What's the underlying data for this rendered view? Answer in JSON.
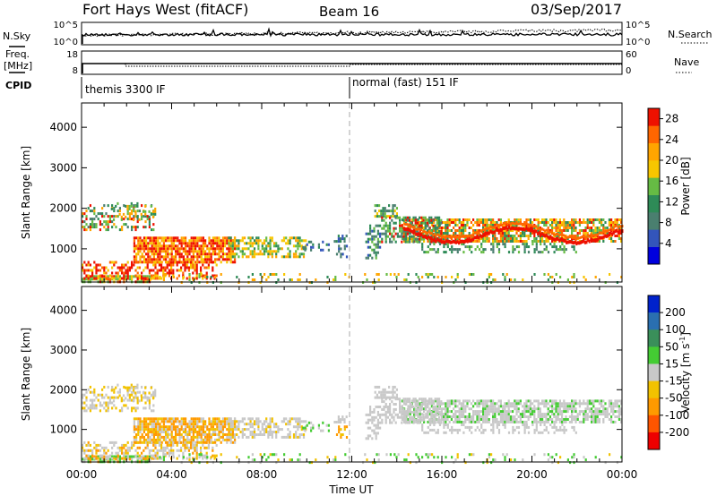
{
  "header": {
    "title": "Fort Hays West (fitACF)",
    "beam": "Beam 16",
    "date": "03/Sep/2017"
  },
  "side_labels": {
    "nsky": "N.Sky",
    "freq_line1": "Freq.",
    "freq_line2": "[MHz]",
    "cpid": "CPID",
    "nsearch": "N.Search",
    "nave": "Nave"
  },
  "nsky_ticks": [
    "10^5",
    "10^0"
  ],
  "nsearch_ticks": [
    "10^5",
    "10^0"
  ],
  "freq_ticks": [
    "18",
    "8"
  ],
  "nave_ticks": [
    "60",
    "0"
  ],
  "cpid_modes": [
    {
      "label": "themis 3300 IF",
      "start_hour": 0
    },
    {
      "label": "normal (fast) 151 IF",
      "start_hour": 12
    }
  ],
  "chart_data": [
    {
      "type": "heatmap",
      "title": "",
      "xlabel": "",
      "ylabel": "Slant Range [km]",
      "xlim": [
        0,
        24
      ],
      "ylim": [
        180,
        4600
      ],
      "y_ticks": [
        "1000",
        "2000",
        "3000",
        "4000"
      ],
      "colorbar": {
        "label": "Power [dB]",
        "ticks": [
          "4",
          "8",
          "12",
          "16",
          "20",
          "24",
          "28"
        ],
        "range": [
          0,
          30
        ]
      },
      "colors": [
        "#0000dd",
        "#3355bb",
        "#4a7f6f",
        "#2e8b57",
        "#66bb44",
        "#f7c600",
        "#ffa500",
        "#ff6600",
        "#ee1100"
      ]
    },
    {
      "type": "heatmap",
      "title": "",
      "xlabel": "Time UT",
      "ylabel": "Slant Range [km]",
      "xlim": [
        0,
        24
      ],
      "ylim": [
        180,
        4600
      ],
      "x_ticks": [
        "00:00",
        "04:00",
        "08:00",
        "12:00",
        "16:00",
        "20:00",
        "00:00"
      ],
      "y_ticks": [
        "1000",
        "2000",
        "3000",
        "4000"
      ],
      "colorbar": {
        "label_main": "Velocity [m s",
        "label_exp": "-1",
        "label_end": "]",
        "ticks": [
          "200",
          "100",
          "50",
          "15",
          "-15",
          "-50",
          "-100",
          "-200"
        ]
      },
      "colors": [
        "#0022cc",
        "#2a6fb0",
        "#3a8f5a",
        "#44cc33",
        "#c8c8c8",
        "#f2c200",
        "#ff9a00",
        "#ff5500",
        "#ee0000"
      ]
    }
  ]
}
